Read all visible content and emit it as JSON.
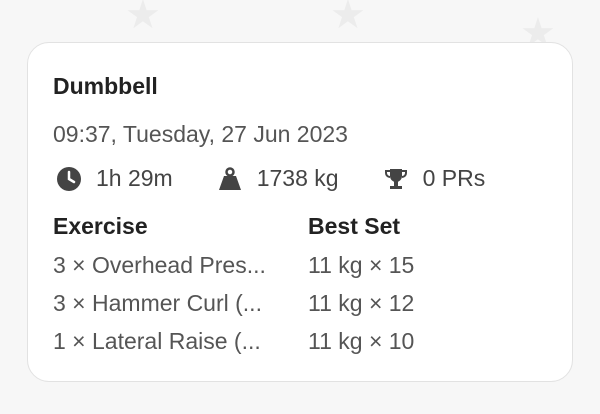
{
  "workout": {
    "title": "Dumbbell",
    "date": "09:37, Tuesday, 27 Jun 2023",
    "duration": "1h 29m",
    "volume": "1738 kg",
    "prs": "0 PRs"
  },
  "table": {
    "headers": [
      "Exercise",
      "Best Set"
    ],
    "rows": [
      {
        "exercise": "3 × Overhead Pres...",
        "best": "11 kg × 15"
      },
      {
        "exercise": "3 × Hammer Curl (...",
        "best": "11 kg × 12"
      },
      {
        "exercise": "1 × Lateral Raise (...",
        "best": "11 kg × 10"
      }
    ]
  }
}
